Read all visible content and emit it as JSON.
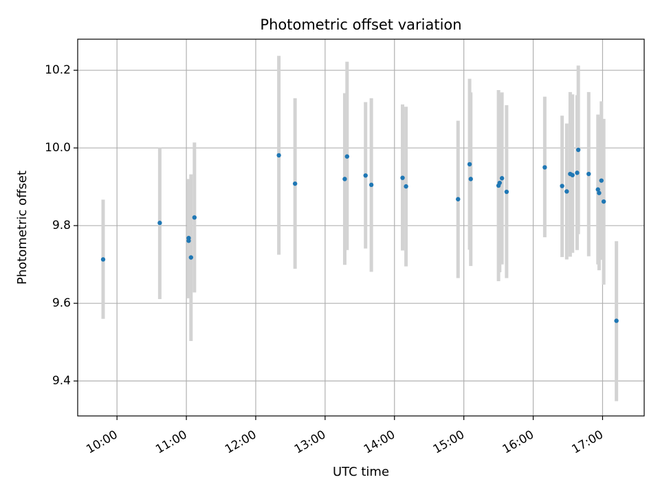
{
  "chart_data": {
    "type": "scatter",
    "title": "Photometric offset variation",
    "xlabel": "UTC time",
    "ylabel": "Photometric offset",
    "x_unit": "UTC time (HH:MM)",
    "xlim": [
      "09:26",
      "17:36"
    ],
    "ylim": [
      9.31,
      10.28
    ],
    "grid": true,
    "x_ticks": [
      "10:00",
      "11:00",
      "12:00",
      "13:00",
      "14:00",
      "15:00",
      "16:00",
      "17:00"
    ],
    "y_ticks": [
      "9.4",
      "9.6",
      "9.8",
      "10.0",
      "10.2"
    ],
    "colors": {
      "marker": "#1f77b4",
      "errorbar": "#d3d3d3",
      "grid": "#b0b0b0"
    },
    "points": [
      {
        "t": "09:48",
        "y": 9.713,
        "lo": 9.56,
        "hi": 9.867
      },
      {
        "t": "10:37",
        "y": 9.807,
        "lo": 9.611,
        "hi": 10.0
      },
      {
        "t": "11:02",
        "y": 9.768,
        "lo": 9.613,
        "hi": 9.92
      },
      {
        "t": "11:02",
        "y": 9.761,
        "lo": 9.62,
        "hi": 9.91
      },
      {
        "t": "11:04",
        "y": 9.718,
        "lo": 9.503,
        "hi": 9.932
      },
      {
        "t": "11:07",
        "y": 9.821,
        "lo": 9.628,
        "hi": 10.014
      },
      {
        "t": "12:20",
        "y": 9.981,
        "lo": 9.725,
        "hi": 10.237
      },
      {
        "t": "12:34",
        "y": 9.908,
        "lo": 9.689,
        "hi": 10.128
      },
      {
        "t": "13:17",
        "y": 9.92,
        "lo": 9.699,
        "hi": 10.141
      },
      {
        "t": "13:19",
        "y": 9.978,
        "lo": 9.737,
        "hi": 10.222
      },
      {
        "t": "13:35",
        "y": 9.929,
        "lo": 9.741,
        "hi": 10.118
      },
      {
        "t": "13:40",
        "y": 9.905,
        "lo": 9.681,
        "hi": 10.128
      },
      {
        "t": "14:07",
        "y": 9.923,
        "lo": 9.736,
        "hi": 10.112
      },
      {
        "t": "14:10",
        "y": 9.901,
        "lo": 9.695,
        "hi": 10.106
      },
      {
        "t": "14:55",
        "y": 9.868,
        "lo": 9.665,
        "hi": 10.07
      },
      {
        "t": "15:05",
        "y": 9.958,
        "lo": 9.738,
        "hi": 10.178
      },
      {
        "t": "15:06",
        "y": 9.92,
        "lo": 9.696,
        "hi": 10.143
      },
      {
        "t": "15:30",
        "y": 9.903,
        "lo": 9.657,
        "hi": 10.149
      },
      {
        "t": "15:31",
        "y": 9.91,
        "lo": 9.68,
        "hi": 10.14
      },
      {
        "t": "15:33",
        "y": 9.922,
        "lo": 9.7,
        "hi": 10.143
      },
      {
        "t": "15:37",
        "y": 9.887,
        "lo": 9.665,
        "hi": 10.11
      },
      {
        "t": "16:10",
        "y": 9.95,
        "lo": 9.77,
        "hi": 10.132
      },
      {
        "t": "16:25",
        "y": 9.902,
        "lo": 9.719,
        "hi": 10.083
      },
      {
        "t": "16:29",
        "y": 9.888,
        "lo": 9.713,
        "hi": 10.063
      },
      {
        "t": "16:32",
        "y": 9.933,
        "lo": 9.72,
        "hi": 10.144
      },
      {
        "t": "16:34",
        "y": 9.93,
        "lo": 9.73,
        "hi": 10.138
      },
      {
        "t": "16:38",
        "y": 9.936,
        "lo": 9.737,
        "hi": 10.136
      },
      {
        "t": "16:39",
        "y": 9.995,
        "lo": 9.778,
        "hi": 10.212
      },
      {
        "t": "16:48",
        "y": 9.933,
        "lo": 9.721,
        "hi": 10.144
      },
      {
        "t": "16:56",
        "y": 9.893,
        "lo": 9.7,
        "hi": 10.086
      },
      {
        "t": "16:57",
        "y": 9.884,
        "lo": 9.685,
        "hi": 10.08
      },
      {
        "t": "16:59",
        "y": 9.916,
        "lo": 9.712,
        "hi": 10.12
      },
      {
        "t": "17:01",
        "y": 9.862,
        "lo": 9.648,
        "hi": 10.075
      },
      {
        "t": "17:12",
        "y": 9.555,
        "lo": 9.348,
        "hi": 9.76
      }
    ]
  }
}
